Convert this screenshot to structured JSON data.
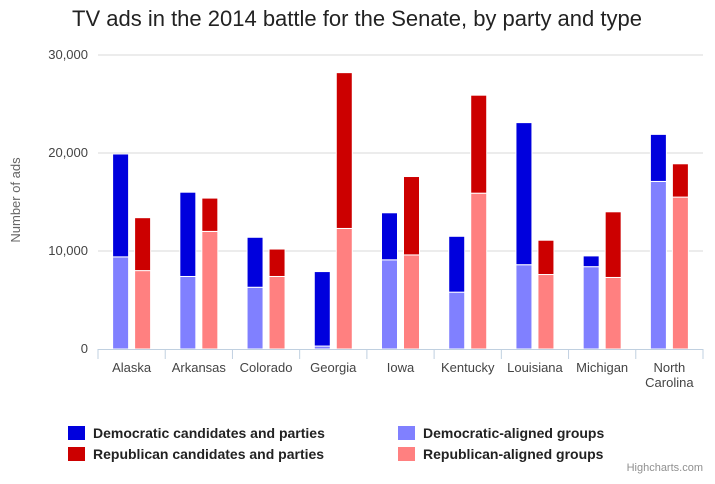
{
  "chart_data": {
    "type": "bar",
    "stacking": "normal",
    "title": "TV ads in the 2014 battle for the Senate, by party and type",
    "ylabel": "Number of ads",
    "xlabel": "",
    "ylim": [
      0,
      30000
    ],
    "yticks": [
      0,
      10000,
      20000,
      30000
    ],
    "ytick_labels": [
      "0",
      "10,000",
      "20,000",
      "30,000"
    ],
    "categories": [
      "Alaska",
      "Arkansas",
      "Colorado",
      "Georgia",
      "Iowa",
      "Kentucky",
      "Louisiana",
      "Michigan",
      "North Carolina"
    ],
    "category_lines": [
      [
        "Alaska"
      ],
      [
        "Arkansas"
      ],
      [
        "Colorado"
      ],
      [
        "Georgia"
      ],
      [
        "Iowa"
      ],
      [
        "Kentucky"
      ],
      [
        "Louisiana"
      ],
      [
        "Michigan"
      ],
      [
        "North",
        "Carolina"
      ]
    ],
    "stacks": [
      {
        "name": "Democratic",
        "series": [
          {
            "name": "Democratic-aligned groups",
            "color": "#8080ff",
            "values": [
              9400,
              7400,
              6300,
              300,
              9100,
              5800,
              8600,
              8400,
              17100
            ]
          },
          {
            "name": "Democratic candidates and parties",
            "color": "#0000dd",
            "values": [
              10500,
              8600,
              5100,
              7600,
              4800,
              5700,
              14500,
              1100,
              4800
            ]
          }
        ]
      },
      {
        "name": "Republican",
        "series": [
          {
            "name": "Republican-aligned groups",
            "color": "#ff8080",
            "values": [
              8000,
              12000,
              7400,
              12300,
              9600,
              15900,
              7600,
              7300,
              15500
            ]
          },
          {
            "name": "Republican candidates and parties",
            "color": "#cc0000",
            "values": [
              5400,
              3400,
              2800,
              15900,
              8000,
              10000,
              3500,
              6700,
              3400
            ]
          }
        ]
      }
    ],
    "legend": {
      "position": "bottom",
      "items": [
        {
          "name": "Democratic candidates and parties",
          "color": "#0000dd"
        },
        {
          "name": "Democratic-aligned groups",
          "color": "#8080ff"
        },
        {
          "name": "Republican candidates and parties",
          "color": "#cc0000"
        },
        {
          "name": "Republican-aligned groups",
          "color": "#ff8080"
        }
      ]
    },
    "credits": "Highcharts.com",
    "grid": true
  }
}
